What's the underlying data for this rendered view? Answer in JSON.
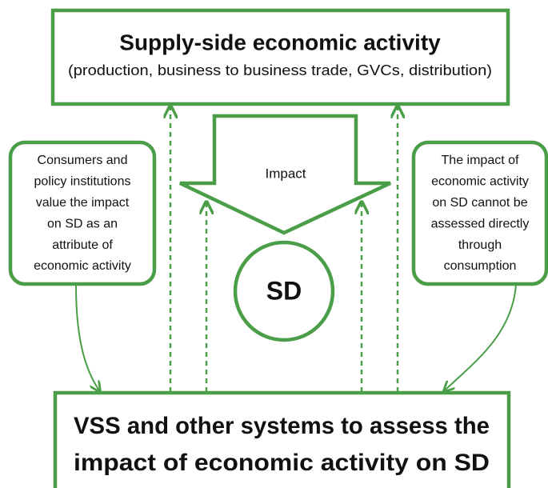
{
  "header": {
    "title": "Supply-side economic activity",
    "subtitle": "(production, business to business trade, GVCs, distribution)"
  },
  "arrow": {
    "label": "Impact"
  },
  "center": {
    "label": "SD"
  },
  "left_note": {
    "lines": [
      "Consumers and",
      "policy institutions",
      "value the impact",
      "on SD as an",
      "attribute of",
      "economic activity"
    ]
  },
  "right_note": {
    "lines": [
      "The impact of",
      "economic activity",
      "on SD cannot be",
      "assessed directly",
      "through",
      "consumption"
    ]
  },
  "footer": {
    "lines": [
      "VSS and other systems to assess the",
      "impact of economic activity on SD"
    ]
  }
}
